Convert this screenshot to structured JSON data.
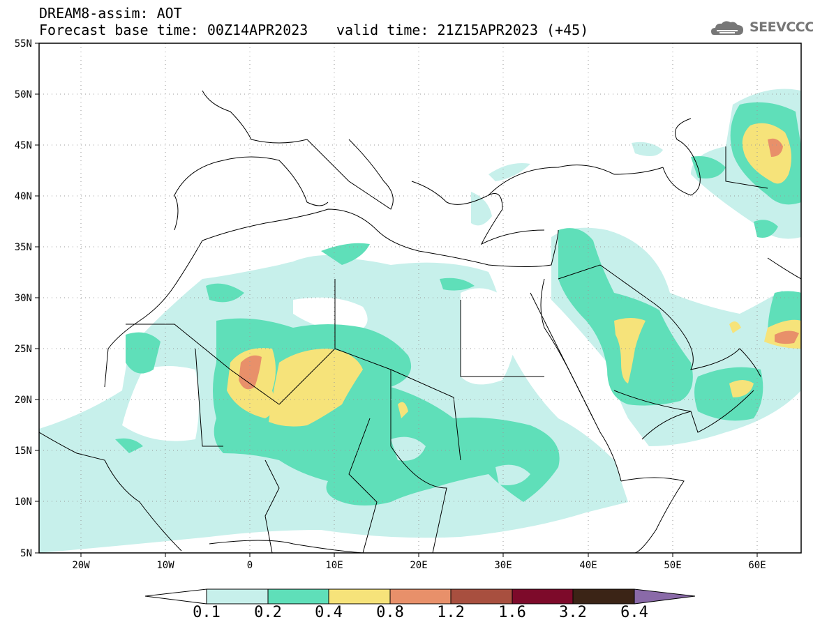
{
  "header": {
    "model_title": "DREAM8-assim: AOT",
    "base_time": "Forecast base time: 00Z14APR2023",
    "valid_time": "valid time: 21Z15APR2023 (+45)",
    "logo_text": "SEEVCCC"
  },
  "map": {
    "extent": {
      "lon": [
        -25,
        65
      ],
      "lat": [
        5,
        55
      ]
    },
    "lat_labels": [
      "55N",
      "50N",
      "45N",
      "40N",
      "35N",
      "30N",
      "25N",
      "20N",
      "15N",
      "10N",
      "5N"
    ],
    "lon_labels": [
      "20W",
      "10W",
      "0",
      "10E",
      "20E",
      "30E",
      "40E",
      "50E",
      "60E"
    ],
    "gridlines": "dotted"
  },
  "colorbar": {
    "labels": [
      "0.1",
      "0.2",
      "0.4",
      "0.8",
      "1.2",
      "1.6",
      "3.2",
      "6.4"
    ],
    "colors": [
      "#ffffff",
      "#c7f0eb",
      "#5fdfb9",
      "#f6e37a",
      "#e8906a",
      "#a84f3f",
      "#7d0a2a",
      "#3b2416",
      "#8a6aa8"
    ]
  }
}
